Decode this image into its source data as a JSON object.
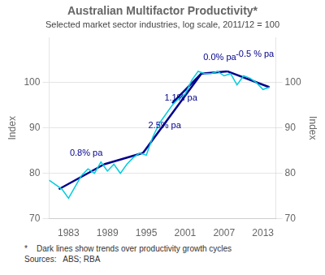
{
  "chart_data": {
    "type": "line",
    "title": "Australian Multifactor Productivity*",
    "subtitle": "Selected market sector industries, log scale, 2011/12 = 100",
    "footnotes": [
      "*    Dark lines show trends over productivity growth cycles",
      "Sources:   ABS; RBA"
    ],
    "ylabel": "Index",
    "y2label": "Index",
    "xlim": [
      1980,
      2015
    ],
    "xticks": [
      1983,
      1989,
      1995,
      2001,
      2007,
      2013
    ],
    "ylim": [
      70,
      110
    ],
    "yticks": [
      70,
      80,
      90,
      100
    ],
    "y2lim": [
      70,
      110
    ],
    "y2ticks": [
      70,
      80,
      90,
      100
    ],
    "grid": "y",
    "series": [
      {
        "color": "#00ccdd",
        "x": [
          1980,
          1981,
          1982,
          1983,
          1984,
          1985,
          1986,
          1987,
          1988,
          1989,
          1990,
          1991,
          1992,
          1993,
          1994,
          1995,
          1996,
          1997,
          1998,
          1999,
          2000,
          2001,
          2002,
          2003,
          2004,
          2005,
          2006,
          2007,
          2008,
          2009,
          2010,
          2011,
          2012,
          2013,
          2014
        ],
        "values": [
          78.5,
          77.5,
          76.5,
          74.5,
          77.0,
          79.5,
          81.0,
          80.0,
          82.5,
          80.5,
          82.0,
          80.0,
          82.0,
          83.5,
          84.5,
          84.0,
          88.0,
          91.0,
          93.0,
          95.0,
          96.5,
          97.5,
          100.5,
          102.5,
          102.0,
          102.0,
          102.5,
          101.5,
          102.0,
          99.5,
          101.5,
          101.0,
          100.0,
          98.5,
          99.0
        ]
      },
      {
        "color": "#00008b",
        "x": [
          1981.5,
          1988.5
        ],
        "values": [
          76.5,
          82.0
        ]
      },
      {
        "color": "#00008b",
        "x": [
          1988.5,
          1994.5
        ],
        "values": [
          82.0,
          84.5
        ]
      },
      {
        "color": "#00008b",
        "x": [
          1994.5,
          2003.5
        ],
        "values": [
          84.5,
          102.0
        ]
      },
      {
        "color": "#00008b",
        "x": [
          1999.0,
          2003.5
        ],
        "values": [
          95.5,
          102.0
        ]
      },
      {
        "color": "#00008b",
        "x": [
          2003.5,
          2007.5
        ],
        "values": [
          102.0,
          102.5
        ]
      },
      {
        "color": "#00008b",
        "x": [
          2007.5,
          2014.0
        ],
        "values": [
          102.5,
          99.0
        ]
      }
    ],
    "annotations": [
      {
        "text": "0.8% pa",
        "x": 1983.2,
        "y": 84.5,
        "color": "#00008b"
      },
      {
        "text": "2.5% pa",
        "x": 1995.3,
        "y": 90.5,
        "color": "#00008b"
      },
      {
        "text": "1.1% pa",
        "x": 1997.8,
        "y": 96.5,
        "color": "#00008b"
      },
      {
        "text": "0.0% pa",
        "x": 2003.8,
        "y": 105.5,
        "color": "#00008b"
      },
      {
        "text": "-0.5 % pa",
        "x": 2008.8,
        "y": 106.2,
        "color": "#00008b"
      }
    ]
  }
}
